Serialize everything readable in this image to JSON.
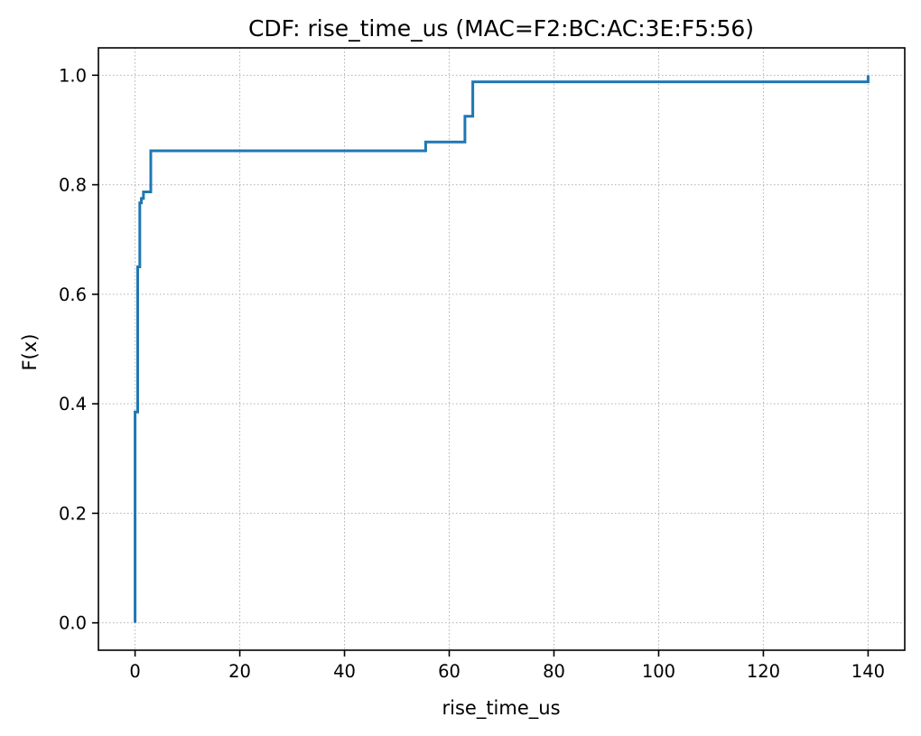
{
  "chart_data": {
    "type": "line",
    "step": "post",
    "title": "CDF: rise_time_us (MAC=F2:BC:AC:3E:F5:56)",
    "xlabel": "rise_time_us",
    "ylabel": "F(x)",
    "xlim": [
      -7,
      147
    ],
    "ylim": [
      -0.05,
      1.05
    ],
    "xticks": [
      0,
      20,
      40,
      60,
      80,
      100,
      120,
      140
    ],
    "xtick_labels": [
      "0",
      "20",
      "40",
      "60",
      "80",
      "100",
      "120",
      "140"
    ],
    "yticks": [
      0.0,
      0.2,
      0.4,
      0.6,
      0.8,
      1.0
    ],
    "ytick_labels": [
      "0.0",
      "0.2",
      "0.4",
      "0.6",
      "0.8",
      "1.0"
    ],
    "grid": true,
    "color": "#1f77b4",
    "series": [
      {
        "x": [
          0,
          0,
          0.5,
          0.5,
          0.9,
          0.9,
          1.2,
          1.2,
          1.6,
          1.6,
          2.1,
          2.1,
          3.0,
          3.0,
          55.5,
          55.5,
          63.0,
          63.0,
          64.5,
          64.5,
          140.0,
          140.0
        ],
        "y": [
          0.0,
          0.385,
          0.385,
          0.65,
          0.65,
          0.767,
          0.767,
          0.775,
          0.775,
          0.787,
          0.787,
          0.787,
          0.787,
          0.862,
          0.862,
          0.878,
          0.878,
          0.925,
          0.925,
          0.988,
          0.988,
          1.0
        ]
      }
    ]
  }
}
